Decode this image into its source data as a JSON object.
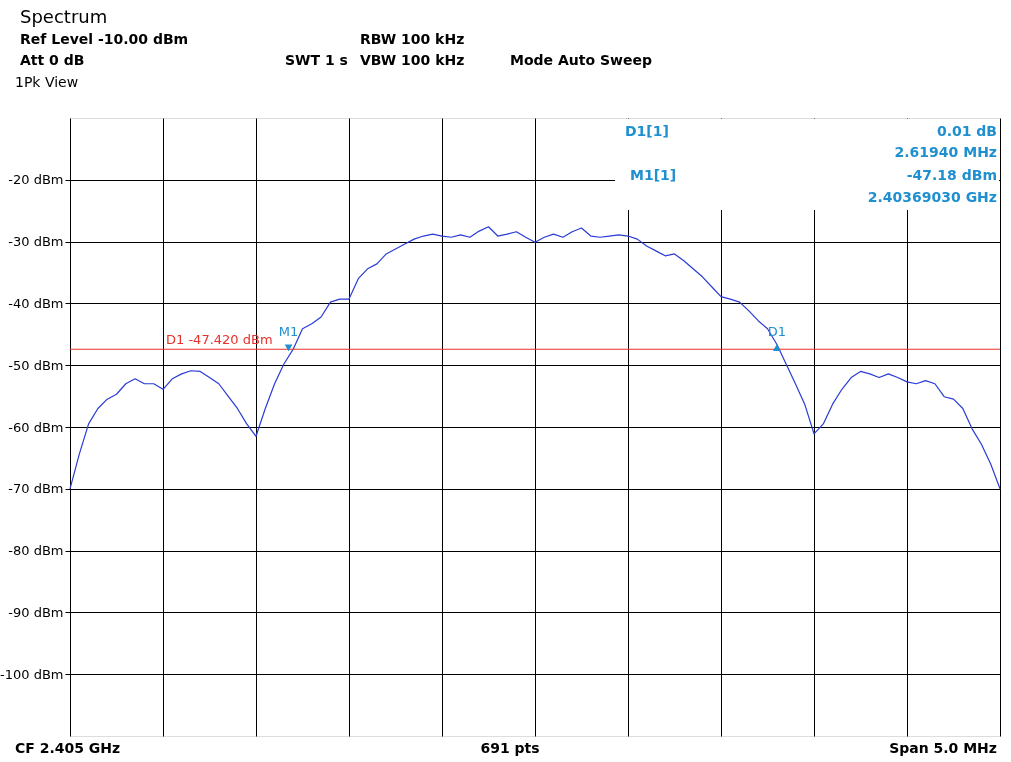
{
  "chart_data": {
    "type": "line",
    "title": "Spectrum",
    "categories": [
      null,
      null,
      null,
      null,
      null,
      null,
      null,
      null,
      null,
      null,
      null,
      null,
      null,
      null,
      null,
      null,
      null,
      null,
      null,
      null,
      null,
      null,
      null,
      null,
      null,
      null,
      null,
      null,
      null,
      null,
      null,
      null,
      null,
      null,
      null,
      null,
      null,
      null,
      null,
      null,
      null,
      null,
      null,
      null,
      null,
      null,
      null,
      null,
      null,
      null,
      null,
      null,
      null,
      null,
      null,
      null,
      null,
      null,
      null,
      null,
      null,
      null,
      null,
      null,
      null,
      null,
      null,
      null,
      null,
      null,
      null,
      null,
      null,
      null,
      null,
      null,
      null,
      null,
      null,
      null,
      null,
      null,
      null,
      null,
      null,
      null,
      null,
      null,
      null,
      null,
      null,
      null,
      null,
      null,
      null,
      null,
      null,
      null,
      null,
      null,
      null
    ],
    "series": [
      {
        "color": "#2a3bd6",
        "values": [
          -70,
          -64.4,
          -59.5,
          -57,
          -55.5,
          -54.7,
          -53,
          -52.2,
          -53,
          -53,
          -53.9,
          -52.2,
          -51.4,
          -50.9,
          -51,
          -52,
          -53,
          -55,
          -57,
          -59.5,
          -61.5,
          -57,
          -53,
          -49.8,
          -47.4,
          -44.1,
          -43.3,
          -42.2,
          -39.8,
          -39.3,
          -39.3,
          -36,
          -34.4,
          -33.6,
          -32,
          -31.2,
          -30.4,
          -29.6,
          -29.1,
          -28.8,
          -29.1,
          -29.3,
          -28.9,
          -29.3,
          -28.3,
          -27.6,
          -29.1,
          -28.8,
          -28.4,
          -29.3,
          -30.1,
          -29.3,
          -28.8,
          -29.3,
          -28.4,
          -27.8,
          -29.1,
          -29.3,
          -29.1,
          -28.9,
          -29.1,
          -29.6,
          -30.7,
          -31.5,
          -32.3,
          -32,
          -33.1,
          -34.4,
          -35.7,
          -37.3,
          -38.9,
          -39.3,
          -39.8,
          -41.2,
          -42.8,
          -44.1,
          -46.6,
          -49.8,
          -53,
          -56.3,
          -61.1,
          -59.5,
          -56.3,
          -53.9,
          -52,
          -51,
          -51.4,
          -52,
          -51.4,
          -52,
          -52.7,
          -53,
          -52.5,
          -53,
          -55.1,
          -55.5,
          -57,
          -60.3,
          -62.8,
          -66,
          -70
        ]
      }
    ],
    "ylim": [
      -110,
      -10
    ],
    "yticks": [
      {
        "value": -20,
        "label": "-20 dBm"
      },
      {
        "value": -30,
        "label": "-30 dBm"
      },
      {
        "value": -40,
        "label": "-40 dBm"
      },
      {
        "value": -50,
        "label": "-50 dBm"
      },
      {
        "value": -60,
        "label": "-60 dBm"
      },
      {
        "value": -70,
        "label": "-70 dBm"
      },
      {
        "value": -80,
        "label": "-80 dBm"
      },
      {
        "value": -90,
        "label": "-90 dBm"
      },
      {
        "value": -100,
        "label": "-100 dBm"
      }
    ],
    "grid": true,
    "ref_lines": [
      {
        "axis": "y",
        "value": -47.42,
        "label": "D1  -47.420 dBm",
        "color": "#e8312a"
      }
    ],
    "annotations": [
      "Ref Level  -10.00 dBm",
      "Att  0 dB",
      "SWT  1 s",
      "RBW  100 kHz",
      "VBW  100 kHz",
      "Mode  Auto Sweep",
      "1Pk View",
      "D1[1]",
      "0.01 dB",
      "2.61940 MHz",
      "M1[1]",
      "-47.18 dBm",
      "2.40369030 GHz",
      "CF 2.405 GHz",
      "691 pts",
      "Span 5.0 MHz",
      {
        "text": "M1",
        "y": -47.18
      },
      {
        "text": "D1",
        "y": -47.17
      }
    ]
  }
}
